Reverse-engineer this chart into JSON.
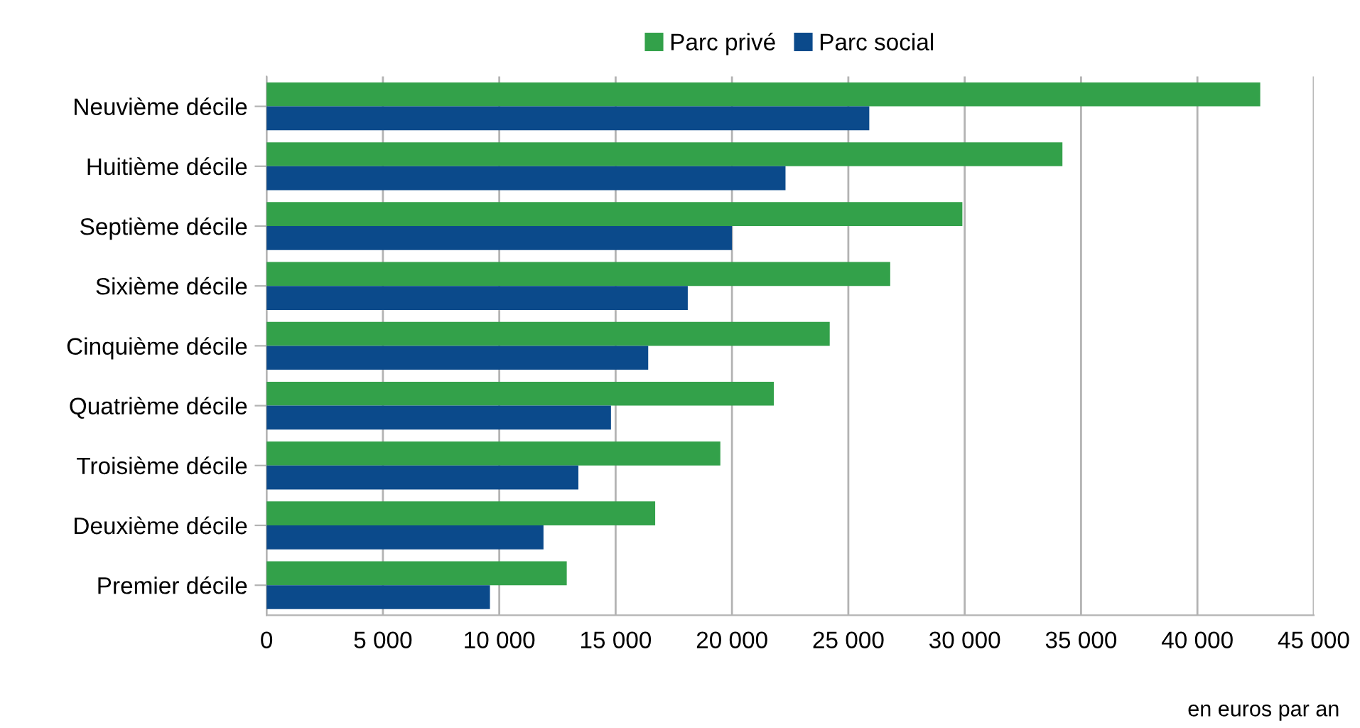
{
  "chart_data": {
    "type": "bar",
    "orientation": "horizontal",
    "categories": [
      "Neuvième décile",
      "Huitième décile",
      "Septième décile",
      "Sixième décile",
      "Cinquième décile",
      "Quatrième décile",
      "Troisième décile",
      "Deuxième décile",
      "Premier décile"
    ],
    "series": [
      {
        "name": "Parc privé",
        "color": "#33a14a",
        "values": [
          42700,
          34200,
          29900,
          26800,
          24200,
          21800,
          19500,
          16700,
          12900
        ]
      },
      {
        "name": "Parc social",
        "color": "#0b4a8b",
        "values": [
          25900,
          22300,
          20000,
          18100,
          16400,
          14800,
          13400,
          11900,
          9600
        ]
      }
    ],
    "xlim": [
      0,
      45000
    ],
    "xticks": [
      {
        "value": 0,
        "label": "0"
      },
      {
        "value": 5000,
        "label": "5 000"
      },
      {
        "value": 10000,
        "label": "10 000"
      },
      {
        "value": 15000,
        "label": "15 000"
      },
      {
        "value": 20000,
        "label": "20 000"
      },
      {
        "value": 25000,
        "label": "25 000"
      },
      {
        "value": 30000,
        "label": "30 000"
      },
      {
        "value": 35000,
        "label": "35 000"
      },
      {
        "value": 40000,
        "label": "40 000"
      },
      {
        "value": 45000,
        "label": "45 000"
      }
    ],
    "grid": "x",
    "legend": "top",
    "annotations": [
      "en euros par an"
    ]
  }
}
